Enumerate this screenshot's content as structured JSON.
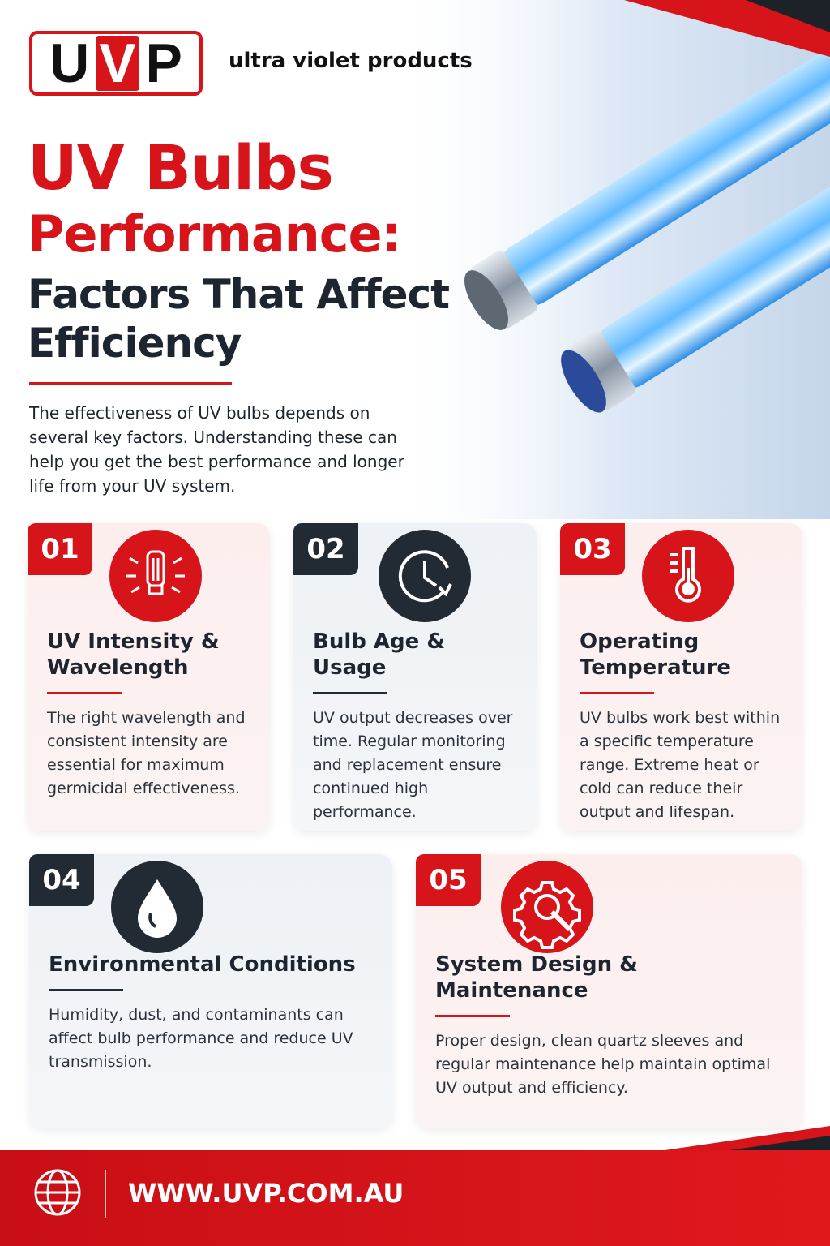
{
  "header": {
    "logo_letters": [
      "U",
      "V",
      "P"
    ],
    "tagline": "ultra violet products"
  },
  "title": {
    "line1": "UV Bulbs",
    "line2": "Performance:",
    "subtitle1": "Factors That Affect",
    "subtitle2": "Efficiency"
  },
  "intro": "The effectiveness of UV bulbs depends on several key factors. Understanding these can help you get the best performance and longer life from your UV system.",
  "cards": [
    {
      "number": "01",
      "title": "UV Intensity & Wavelength",
      "text": "The right wavelength and consistent intensity are essential for maximum germicidal effectiveness."
    },
    {
      "number": "02",
      "title": "Bulb Age & Usage",
      "text": "UV output decreases over time. Regular monitoring and replacement ensure continued high performance."
    },
    {
      "number": "03",
      "title": "Operating Temperature",
      "text": "UV bulbs work best within a specific temperature range. Extreme heat or cold can reduce their output and lifespan."
    },
    {
      "number": "04",
      "title": "Environmental Conditions",
      "text": "Humidity, dust, and contaminants can affect bulb performance and reduce UV transmission."
    },
    {
      "number": "05",
      "title": "System Design & Maintenance",
      "text": "Proper design, clean quartz sleeves and regular maintenance help maintain optimal UV output and efficiency."
    }
  ],
  "footer": {
    "website": "WWW.UVP.COM.AU"
  }
}
